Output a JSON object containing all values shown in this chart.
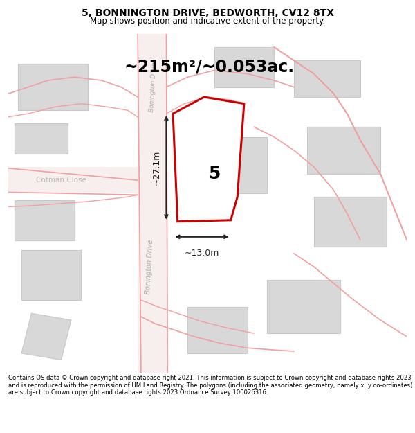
{
  "title_line1": "5, BONNINGTON DRIVE, BEDWORTH, CV12 8TX",
  "title_line2": "Map shows position and indicative extent of the property.",
  "area_text": "~215m²/~0.053ac.",
  "dim_height": "~27.1m",
  "dim_width": "~13.0m",
  "number_label": "5",
  "footer_text": "Contains OS data © Crown copyright and database right 2021. This information is subject to Crown copyright and database rights 2023 and is reproduced with the permission of HM Land Registry. The polygons (including the associated geometry, namely x, y co-ordinates) are subject to Crown copyright and database rights 2023 Ordnance Survey 100026316.",
  "map_bg": "#ffffff",
  "building_fill": "#d8d8d8",
  "building_stroke": "#c8c8c8",
  "plot_fill": "#ffffff",
  "plot_stroke": "#cc0000",
  "dim_color": "#222222",
  "road_line_color": "#f0a0a0",
  "road_fill_color": "#f8e8e8",
  "street_label_color": "#aaaaaa",
  "cotman_label": "Cotman Close",
  "street_label_upper": "Bonington D'ive",
  "street_label_lower": "Bonington Drive"
}
